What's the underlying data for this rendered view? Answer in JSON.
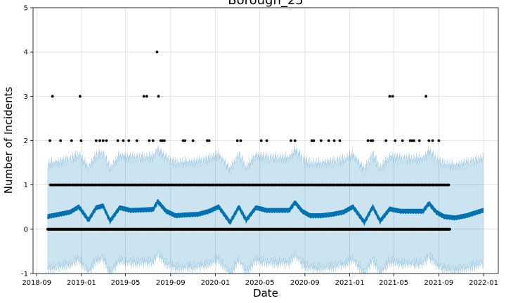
{
  "chart_data": {
    "type": "scatter",
    "title": "Borough_25",
    "xlabel": "Date",
    "ylabel": "Number of Incidents",
    "ylim": [
      -1,
      5
    ],
    "xlim": [
      "2018-08-22",
      "2022-02-10"
    ],
    "grid": true,
    "x_ticks": [
      "2018-09",
      "2019-01",
      "2019-05",
      "2019-09",
      "2020-01",
      "2020-05",
      "2020-09",
      "2021-01",
      "2021-05",
      "2021-09",
      "2022-01"
    ],
    "y_ticks": [
      -1,
      0,
      1,
      2,
      3,
      4,
      5
    ],
    "observed_start": "2018-10-01",
    "observed_end": "2021-10-01",
    "forecast_end": "2021-12-31",
    "forecast_line_color": "#0072B2",
    "interval_color": "#0072B2",
    "point_color": "#000000",
    "series": [
      {
        "name": "yhat",
        "x": [
          "2018-10-01",
          "2018-11-01",
          "2018-12-01",
          "2018-12-25",
          "2019-01-20",
          "2019-02-10",
          "2019-03-01",
          "2019-03-20",
          "2019-04-15",
          "2019-05-15",
          "2019-06-15",
          "2019-07-15",
          "2019-07-28",
          "2019-08-20",
          "2019-09-15",
          "2019-10-15",
          "2019-11-15",
          "2019-12-15",
          "2020-01-10",
          "2020-02-10",
          "2020-03-05",
          "2020-03-25",
          "2020-04-20",
          "2020-05-20",
          "2020-06-20",
          "2020-07-20",
          "2020-08-05",
          "2020-08-25",
          "2020-09-15",
          "2020-10-15",
          "2020-11-15",
          "2020-12-15",
          "2021-01-10",
          "2021-02-10",
          "2021-03-05",
          "2021-03-25",
          "2021-04-20",
          "2021-05-20",
          "2021-06-20",
          "2021-07-20",
          "2021-08-05",
          "2021-08-25",
          "2021-09-15",
          "2021-10-15",
          "2021-11-15",
          "2021-12-31"
        ],
        "values": [
          0.28,
          0.33,
          0.38,
          0.5,
          0.2,
          0.48,
          0.52,
          0.18,
          0.48,
          0.42,
          0.43,
          0.44,
          0.62,
          0.4,
          0.3,
          0.32,
          0.33,
          0.4,
          0.5,
          0.15,
          0.5,
          0.2,
          0.48,
          0.42,
          0.42,
          0.42,
          0.6,
          0.4,
          0.3,
          0.3,
          0.33,
          0.38,
          0.5,
          0.15,
          0.5,
          0.18,
          0.45,
          0.4,
          0.4,
          0.4,
          0.58,
          0.38,
          0.28,
          0.25,
          0.3,
          0.42
        ]
      }
    ],
    "interval_half_width": 1.15,
    "observed_points": [
      {
        "x": "2018-10-07",
        "y": 2
      },
      {
        "x": "2018-10-14",
        "y": 3
      },
      {
        "x": "2018-11-05",
        "y": 2
      },
      {
        "x": "2018-12-05",
        "y": 2
      },
      {
        "x": "2018-12-28",
        "y": 3
      },
      {
        "x": "2018-12-31",
        "y": 2
      },
      {
        "x": "2019-02-10",
        "y": 2
      },
      {
        "x": "2019-02-20",
        "y": 2
      },
      {
        "x": "2019-03-01",
        "y": 2
      },
      {
        "x": "2019-03-10",
        "y": 2
      },
      {
        "x": "2019-04-10",
        "y": 2
      },
      {
        "x": "2019-04-25",
        "y": 2
      },
      {
        "x": "2019-05-10",
        "y": 2
      },
      {
        "x": "2019-06-01",
        "y": 2
      },
      {
        "x": "2019-06-20",
        "y": 3
      },
      {
        "x": "2019-06-28",
        "y": 3
      },
      {
        "x": "2019-07-05",
        "y": 2
      },
      {
        "x": "2019-07-15",
        "y": 2
      },
      {
        "x": "2019-07-26",
        "y": 4
      },
      {
        "x": "2019-07-30",
        "y": 3
      },
      {
        "x": "2019-08-05",
        "y": 2
      },
      {
        "x": "2019-08-10",
        "y": 2
      },
      {
        "x": "2019-08-15",
        "y": 2
      },
      {
        "x": "2019-10-05",
        "y": 2
      },
      {
        "x": "2019-10-10",
        "y": 2
      },
      {
        "x": "2019-11-01",
        "y": 2
      },
      {
        "x": "2019-12-10",
        "y": 2
      },
      {
        "x": "2019-12-15",
        "y": 2
      },
      {
        "x": "2020-03-01",
        "y": 2
      },
      {
        "x": "2020-03-10",
        "y": 2
      },
      {
        "x": "2020-05-05",
        "y": 2
      },
      {
        "x": "2020-05-20",
        "y": 2
      },
      {
        "x": "2020-07-25",
        "y": 2
      },
      {
        "x": "2020-08-05",
        "y": 2
      },
      {
        "x": "2020-09-20",
        "y": 2
      },
      {
        "x": "2020-09-25",
        "y": 2
      },
      {
        "x": "2020-10-15",
        "y": 2
      },
      {
        "x": "2020-11-05",
        "y": 2
      },
      {
        "x": "2020-11-20",
        "y": 2
      },
      {
        "x": "2020-12-05",
        "y": 2
      },
      {
        "x": "2021-02-20",
        "y": 2
      },
      {
        "x": "2021-02-28",
        "y": 2
      },
      {
        "x": "2021-03-05",
        "y": 2
      },
      {
        "x": "2021-04-10",
        "y": 2
      },
      {
        "x": "2021-04-20",
        "y": 3
      },
      {
        "x": "2021-04-28",
        "y": 3
      },
      {
        "x": "2021-05-05",
        "y": 2
      },
      {
        "x": "2021-05-25",
        "y": 2
      },
      {
        "x": "2021-06-15",
        "y": 2
      },
      {
        "x": "2021-06-20",
        "y": 2
      },
      {
        "x": "2021-06-25",
        "y": 2
      },
      {
        "x": "2021-07-10",
        "y": 2
      },
      {
        "x": "2021-07-28",
        "y": 3
      },
      {
        "x": "2021-08-05",
        "y": 2
      },
      {
        "x": "2021-08-15",
        "y": 2
      },
      {
        "x": "2021-09-01",
        "y": 2
      }
    ],
    "dense_points_note": "Daily observations at 0 and 1 cover the observed period"
  }
}
